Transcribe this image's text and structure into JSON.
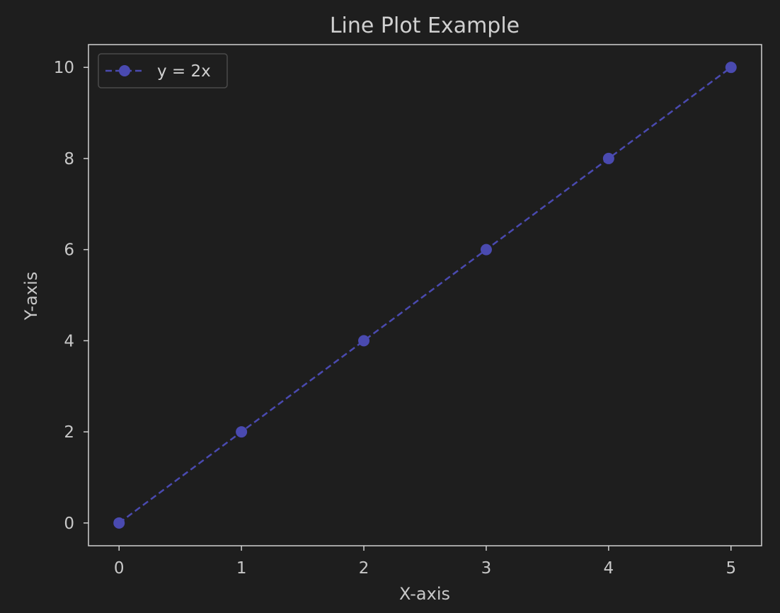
{
  "chart_data": {
    "type": "line",
    "title": "Line Plot Example",
    "xlabel": "X-axis",
    "ylabel": "Y-axis",
    "xlim": [
      -0.25,
      5.25
    ],
    "ylim": [
      -0.5,
      10.5
    ],
    "xticks": [
      0,
      1,
      2,
      3,
      4,
      5
    ],
    "yticks": [
      0,
      2,
      4,
      6,
      8,
      10
    ],
    "grid": false,
    "legend_position": "top-left",
    "series": [
      {
        "name": "y = 2x",
        "x": [
          0,
          1,
          2,
          3,
          4,
          5
        ],
        "y": [
          0,
          2,
          4,
          6,
          8,
          10
        ],
        "line_style": "dashed",
        "marker": "circle",
        "color": "#4a4ab0"
      }
    ]
  },
  "colors": {
    "background": "#1e1e1e",
    "text": "#d0d0d0",
    "series": "#4a4ab0"
  }
}
